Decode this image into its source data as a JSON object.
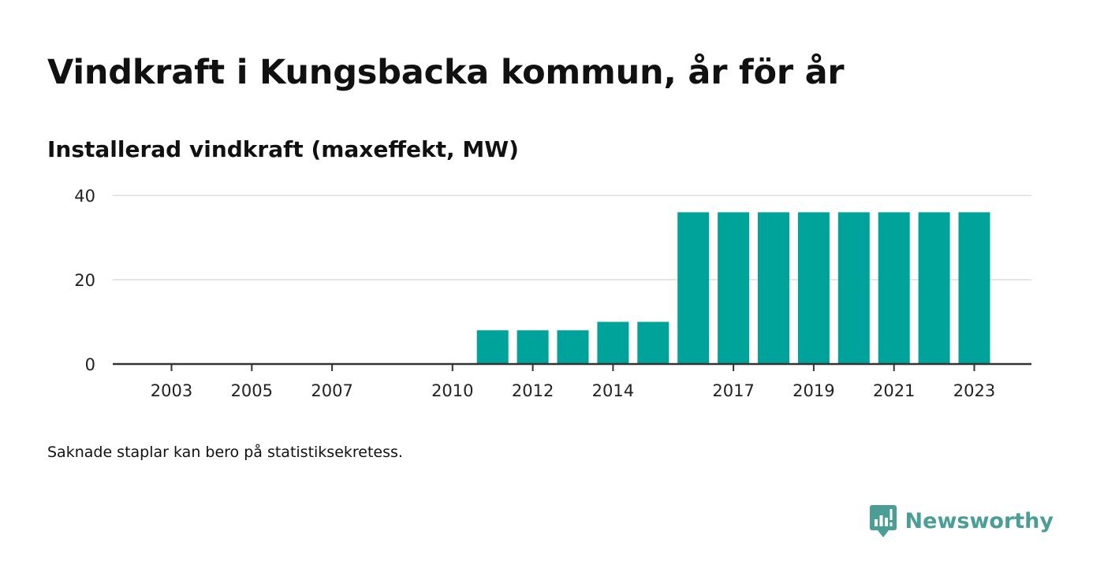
{
  "title": "Vindkraft i Kungsbacka kommun, år för år",
  "subtitle": "Installerad vindkraft (maxeffekt, MW)",
  "note": "Saknade staplar kan bero på statistiksekretess.",
  "brand": {
    "name": "Newsworthy",
    "icon": "newsworthy-logo-icon",
    "color": "#4a9e95"
  },
  "colors": {
    "bar": "#00a39a",
    "grid": "#dddddd",
    "axis": "#333333"
  },
  "chart_data": {
    "type": "bar",
    "title": "Vindkraft i Kungsbacka kommun, år för år",
    "subtitle": "Installerad vindkraft (maxeffekt, MW)",
    "xlabel": "",
    "ylabel": "",
    "ylim": [
      0,
      40
    ],
    "yticks": [
      0,
      20,
      40
    ],
    "grid": true,
    "categories": [
      "2003",
      "2004",
      "2005",
      "2006",
      "2007",
      "2008",
      "2009",
      "2010",
      "2011",
      "2012",
      "2013",
      "2014",
      "2015",
      "2016",
      "2017",
      "2018",
      "2019",
      "2020",
      "2021",
      "2022",
      "2023"
    ],
    "xtick_labels": [
      "2003",
      "2005",
      "2007",
      "2010",
      "2012",
      "2014",
      "2017",
      "2019",
      "2021",
      "2023"
    ],
    "values": [
      0,
      0,
      0,
      0,
      0,
      0,
      0,
      0,
      8,
      8,
      8,
      10,
      10,
      36,
      36,
      36,
      36,
      36,
      36,
      36,
      36
    ]
  }
}
